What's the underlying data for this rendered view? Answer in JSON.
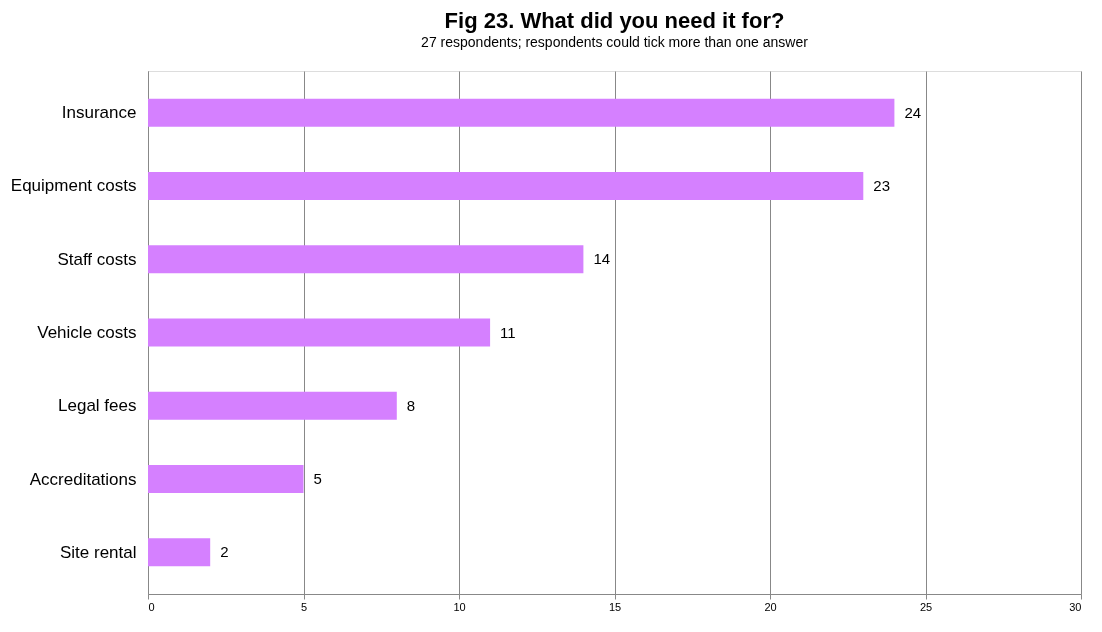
{
  "chart_data": {
    "type": "bar",
    "orientation": "horizontal",
    "title": "Fig 23. What did you need it for?",
    "subtitle": "27 respondents; respondents could tick more than one answer",
    "categories": [
      "Insurance",
      "Equipment costs",
      "Staff costs",
      "Vehicle costs",
      "Legal fees",
      "Accreditations",
      "Site rental"
    ],
    "values": [
      24,
      23,
      14,
      11,
      8,
      5,
      2
    ],
    "color": "#d580ff",
    "xlim": [
      0,
      30
    ],
    "xticks": [
      0,
      5,
      10,
      15,
      20,
      25,
      30
    ],
    "grid": "x",
    "data_labels": true
  }
}
